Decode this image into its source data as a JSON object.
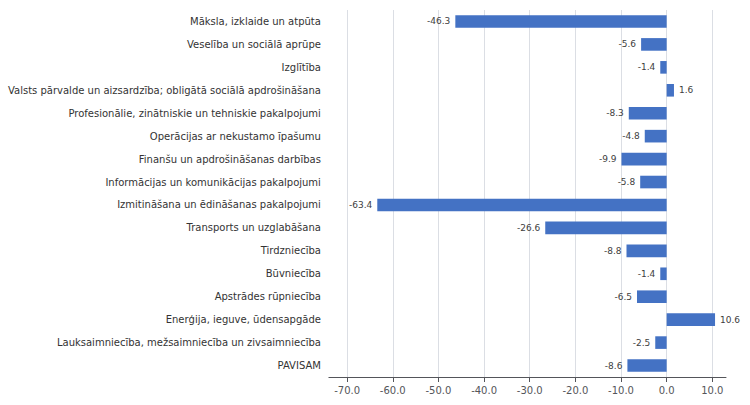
{
  "chart_data": {
    "type": "bar",
    "orientation": "horizontal",
    "categories": [
      "Māksla, izklaide un atpūta",
      "Veselība un sociālā aprūpe",
      "Izglītība",
      "Valsts pārvalde un aizsardzība; obligātā sociālā apdrošināšana",
      "Profesionālie, zinātniskie un tehniskie pakalpojumi",
      "Operācijas ar nekustamo īpašumu",
      "Finanšu un apdrošināšanas darbības",
      "Informācijas un komunikācijas pakalpojumi",
      "Izmitināšana un ēdināšanas pakalpojumi",
      "Transports un uzglabāšana",
      "Tirdzniecība",
      "Būvniecība",
      "Apstrādes rūpniecība",
      "Enerģija, ieguve, ūdensapgāde",
      "Lauksaimniecība, mežsaimniecība un zivsaimniecība",
      "PAVISAM"
    ],
    "values": [
      -46.3,
      -5.6,
      -1.4,
      1.6,
      -8.3,
      -4.8,
      -9.9,
      -5.8,
      -63.4,
      -26.6,
      -8.8,
      -1.4,
      -6.5,
      10.6,
      -2.5,
      -8.6
    ],
    "color": "#4472C4",
    "xlim": [
      -74,
      13
    ],
    "xticks": [
      {
        "value": -70,
        "label": "-70.0"
      },
      {
        "value": -60,
        "label": "-60.0"
      },
      {
        "value": -50,
        "label": "-50.0"
      },
      {
        "value": -40,
        "label": "-40.0"
      },
      {
        "value": -30,
        "label": "-30.0"
      },
      {
        "value": -20,
        "label": "-20.0"
      },
      {
        "value": -10,
        "label": "-10.0"
      },
      {
        "value": 0,
        "label": "0.0"
      },
      {
        "value": 10,
        "label": "10.0"
      }
    ],
    "grid": true,
    "data_labels": true
  }
}
